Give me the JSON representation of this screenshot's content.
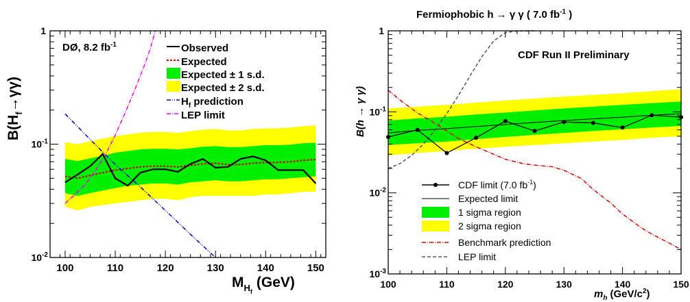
{
  "chart_data": [
    {
      "type": "line",
      "experiment_label": "DØ, 8.2 fb",
      "experiment_label_sup": "-1",
      "xlabel": "M",
      "xlabel_sub": "H",
      "xlabel_subsub": "f",
      "xlabel_unit": "(GeV)",
      "ylabel": "B(H",
      "ylabel_sub": "f",
      "ylabel_tail": "→γγ)",
      "xlim": [
        97,
        152
      ],
      "ylim": [
        0.01,
        1
      ],
      "yscale": "log",
      "x_ticks": [
        "100",
        "110",
        "120",
        "130",
        "140",
        "150"
      ],
      "x_tick_values": [
        100,
        110,
        120,
        130,
        140,
        150
      ],
      "y_ticks": [
        {
          "value": 0.01,
          "base": "10",
          "exp": "-2"
        },
        {
          "value": 0.1,
          "base": "10",
          "exp": "-1"
        },
        {
          "value": 1,
          "base": "1",
          "exp": ""
        }
      ],
      "legend": {
        "position": "top-right",
        "observed": "Observed",
        "expected": "Expected",
        "band1": "Expected ± 1 s.d.",
        "band2": "Expected ± 2 s.d.",
        "prediction": "H",
        "prediction_sub": "f",
        "prediction_tail": " prediction",
        "lep": "LEP limit"
      },
      "x": [
        100,
        102.5,
        105,
        107.5,
        110,
        112.5,
        115,
        117.5,
        120,
        122.5,
        125,
        127.5,
        130,
        132.5,
        135,
        137.5,
        140,
        142.5,
        145,
        147.5,
        150
      ],
      "observed": [
        0.046,
        0.054,
        0.064,
        0.082,
        0.05,
        0.043,
        0.056,
        0.06,
        0.06,
        0.057,
        0.067,
        0.074,
        0.062,
        0.063,
        0.074,
        0.078,
        0.072,
        0.059,
        0.059,
        0.059,
        0.045
      ],
      "expected": [
        0.052,
        0.05,
        0.053,
        0.056,
        0.059,
        0.061,
        0.063,
        0.064,
        0.064,
        0.063,
        0.065,
        0.067,
        0.068,
        0.066,
        0.066,
        0.068,
        0.069,
        0.069,
        0.07,
        0.072,
        0.073
      ],
      "band1_low": [
        0.037,
        0.035,
        0.037,
        0.039,
        0.041,
        0.043,
        0.044,
        0.045,
        0.045,
        0.044,
        0.046,
        0.047,
        0.048,
        0.047,
        0.047,
        0.048,
        0.049,
        0.049,
        0.05,
        0.051,
        0.052
      ],
      "band1_high": [
        0.074,
        0.071,
        0.075,
        0.079,
        0.084,
        0.087,
        0.09,
        0.091,
        0.091,
        0.09,
        0.092,
        0.095,
        0.096,
        0.094,
        0.094,
        0.096,
        0.098,
        0.098,
        0.099,
        0.102,
        0.103
      ],
      "band2_low": [
        0.028,
        0.026,
        0.028,
        0.029,
        0.03,
        0.031,
        0.032,
        0.033,
        0.033,
        0.032,
        0.034,
        0.035,
        0.035,
        0.035,
        0.035,
        0.035,
        0.036,
        0.036,
        0.037,
        0.038,
        0.038
      ],
      "band2_high": [
        0.104,
        0.1,
        0.106,
        0.112,
        0.118,
        0.122,
        0.126,
        0.128,
        0.128,
        0.126,
        0.13,
        0.134,
        0.136,
        0.132,
        0.132,
        0.136,
        0.138,
        0.138,
        0.14,
        0.144,
        0.146
      ],
      "prediction_x": [
        100,
        105,
        110,
        115,
        120,
        125,
        130
      ],
      "prediction_y": [
        0.185,
        0.11,
        0.066,
        0.042,
        0.026,
        0.016,
        0.01
      ],
      "lep_x": [
        100,
        102,
        104,
        106,
        108,
        110,
        112,
        114,
        116,
        117,
        118
      ],
      "lep_y": [
        0.03,
        0.036,
        0.044,
        0.058,
        0.08,
        0.12,
        0.19,
        0.31,
        0.52,
        0.7,
        1.0
      ],
      "colors": {
        "band1": "#00ee00",
        "band2": "#ffff00",
        "observed": "#000000",
        "expected": "#cc0000",
        "prediction": "#0000cc",
        "lep": "#ee00ee"
      }
    },
    {
      "type": "line",
      "title": "Fermiophobic h → γ γ ( 7.0 fb",
      "title_sup": "-1",
      "title_tail": " )",
      "experiment_label": "CDF Run II Preliminary",
      "xlabel": "m",
      "xlabel_sub": "h",
      "xlabel_unit": "(GeV/c",
      "xlabel_unit_sup": "2",
      "xlabel_unit_tail": ")",
      "ylabel": "B(h → γ γ)",
      "xlim": [
        100,
        150
      ],
      "ylim": [
        0.001,
        1
      ],
      "yscale": "log",
      "x_ticks": [
        "100",
        "110",
        "120",
        "130",
        "140",
        "150"
      ],
      "x_tick_values": [
        100,
        110,
        120,
        130,
        140,
        150
      ],
      "y_ticks": [
        {
          "value": 0.001,
          "base": "10",
          "exp": "-3"
        },
        {
          "value": 0.01,
          "base": "10",
          "exp": "-2"
        },
        {
          "value": 0.1,
          "base": "10",
          "exp": "-1"
        },
        {
          "value": 1,
          "base": "1",
          "exp": ""
        }
      ],
      "legend": {
        "position": "bottom-left",
        "cdf": "CDF limit (7.0 fb",
        "cdf_sup": "-1",
        "cdf_tail": ")",
        "expected": "Expected limit",
        "band1": "1 sigma region",
        "band2": "2 sigma region",
        "benchmark": "Benchmark prediction",
        "lep": "LEP limit"
      },
      "x": [
        100,
        105,
        110,
        115,
        120,
        125,
        130,
        135,
        140,
        145,
        150
      ],
      "cdf_limit": [
        0.049,
        0.06,
        0.031,
        0.048,
        0.077,
        0.058,
        0.075,
        0.073,
        0.064,
        0.091,
        0.086
      ],
      "expected": [
        0.055,
        0.059,
        0.062,
        0.066,
        0.07,
        0.074,
        0.078,
        0.082,
        0.086,
        0.091,
        0.095
      ],
      "band1_low": [
        0.039,
        0.041,
        0.043,
        0.046,
        0.049,
        0.052,
        0.055,
        0.058,
        0.061,
        0.064,
        0.067
      ],
      "band1_high": [
        0.078,
        0.083,
        0.087,
        0.093,
        0.098,
        0.104,
        0.11,
        0.116,
        0.122,
        0.128,
        0.134
      ],
      "band2_low": [
        0.029,
        0.031,
        0.033,
        0.035,
        0.037,
        0.039,
        0.041,
        0.043,
        0.045,
        0.048,
        0.05
      ],
      "band2_high": [
        0.11,
        0.116,
        0.122,
        0.13,
        0.138,
        0.146,
        0.154,
        0.162,
        0.17,
        0.18,
        0.19
      ],
      "benchmark_x": [
        100,
        102,
        105,
        108,
        110,
        112,
        115,
        118,
        120,
        123,
        125,
        128,
        130,
        133,
        135,
        138,
        140,
        143,
        145,
        148,
        150
      ],
      "benchmark_y": [
        0.185,
        0.14,
        0.097,
        0.072,
        0.058,
        0.047,
        0.037,
        0.03,
        0.026,
        0.023,
        0.022,
        0.021,
        0.019,
        0.015,
        0.011,
        0.0075,
        0.0055,
        0.0038,
        0.0031,
        0.0024,
        0.002
      ],
      "lep_x": [
        100,
        102,
        104,
        106,
        108,
        110,
        112,
        114,
        116,
        118,
        120,
        122,
        124,
        125
      ],
      "lep_y": [
        0.02,
        0.023,
        0.029,
        0.04,
        0.06,
        0.095,
        0.16,
        0.28,
        0.48,
        0.75,
        0.95,
        0.995,
        1.0,
        1.0
      ],
      "colors": {
        "band1": "#00ee00",
        "band2": "#ffff00",
        "cdf": "#000000",
        "expected": "#000000",
        "benchmark": "#dd0000",
        "lep": "#555555"
      }
    }
  ]
}
